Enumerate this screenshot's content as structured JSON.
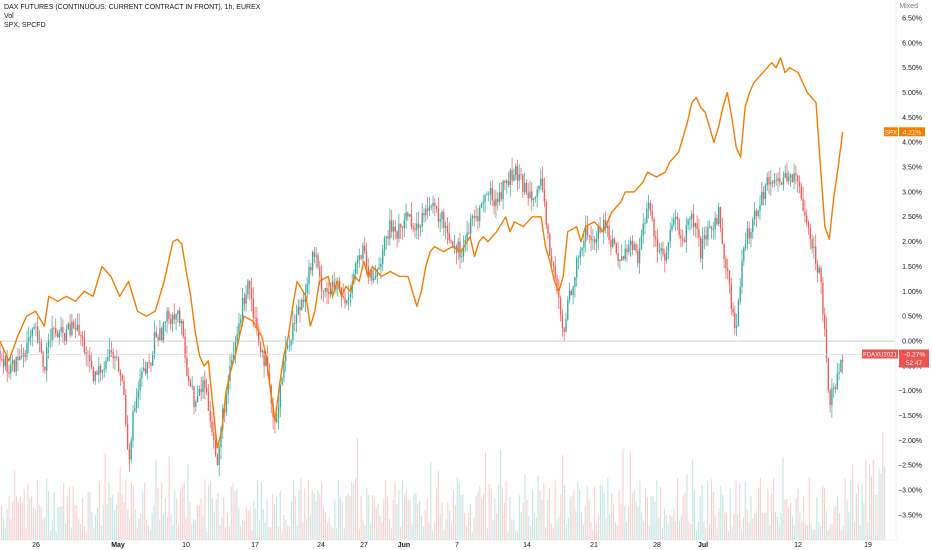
{
  "legend": {
    "main_title": "DAX FUTURES (CONTINUOUS: CURRENT CONTRACT IN FRONT), 1h, EUREX",
    "volume_label": "Vol",
    "compare_label": "SPX, SPCFD"
  },
  "scale_mode": "Mixed",
  "chart_data": {
    "type": "line",
    "yaxis": {
      "unit": "%",
      "ticks": [
        "6.50%",
        "6.00%",
        "5.50%",
        "5.00%",
        "4.50%",
        "4.00%",
        "3.50%",
        "3.00%",
        "2.50%",
        "2.00%",
        "1.50%",
        "1.00%",
        "0.50%",
        "0.00%",
        "−0.50%",
        "−1.00%",
        "−1.50%",
        "−2.00%",
        "−2.50%",
        "−3.00%",
        "−3.50%"
      ],
      "range": [
        -3.75,
        6.6
      ]
    },
    "xaxis": {
      "ticks": [
        "26",
        "May",
        "10",
        "17",
        "24",
        "27",
        "Jun",
        "7",
        "14",
        "21",
        "28",
        "Jul",
        "12",
        "19"
      ],
      "bold_ticks": [
        "May",
        "Jun",
        "Jul"
      ],
      "range": [
        0,
        1
      ]
    },
    "series": [
      {
        "name": "SPX",
        "kind": "line",
        "color": "#f57c00",
        "last_label": "SPX",
        "last_value": "4.21%",
        "points": [
          [
            0.0,
            0.0
          ],
          [
            0.01,
            -0.4
          ],
          [
            0.02,
            0.1
          ],
          [
            0.03,
            0.5
          ],
          [
            0.04,
            0.6
          ],
          [
            0.05,
            0.3
          ],
          [
            0.055,
            0.9
          ],
          [
            0.065,
            0.8
          ],
          [
            0.075,
            0.9
          ],
          [
            0.085,
            0.8
          ],
          [
            0.095,
            1.0
          ],
          [
            0.105,
            0.9
          ],
          [
            0.115,
            1.5
          ],
          [
            0.125,
            1.3
          ],
          [
            0.135,
            0.9
          ],
          [
            0.145,
            1.2
          ],
          [
            0.155,
            0.6
          ],
          [
            0.165,
            0.5
          ],
          [
            0.175,
            0.6
          ],
          [
            0.185,
            1.2
          ],
          [
            0.19,
            1.6
          ],
          [
            0.195,
            2.0
          ],
          [
            0.2,
            2.05
          ],
          [
            0.205,
            1.95
          ],
          [
            0.21,
            1.4
          ],
          [
            0.215,
            0.9
          ],
          [
            0.22,
            0.2
          ],
          [
            0.225,
            -0.3
          ],
          [
            0.23,
            -0.5
          ],
          [
            0.235,
            -0.4
          ],
          [
            0.24,
            -1.3
          ],
          [
            0.245,
            -2.15
          ],
          [
            0.25,
            -1.8
          ],
          [
            0.255,
            -1.0
          ],
          [
            0.26,
            -0.6
          ],
          [
            0.265,
            -0.3
          ],
          [
            0.27,
            0.1
          ],
          [
            0.275,
            0.5
          ],
          [
            0.285,
            0.4
          ],
          [
            0.295,
            0.1
          ],
          [
            0.3,
            -0.3
          ],
          [
            0.305,
            -1.0
          ],
          [
            0.31,
            -1.6
          ],
          [
            0.315,
            -0.9
          ],
          [
            0.32,
            -0.3
          ],
          [
            0.325,
            0.1
          ],
          [
            0.33,
            0.7
          ],
          [
            0.335,
            1.2
          ],
          [
            0.345,
            0.9
          ],
          [
            0.35,
            0.3
          ],
          [
            0.355,
            0.6
          ],
          [
            0.36,
            1.2
          ],
          [
            0.37,
            1.3
          ],
          [
            0.375,
            0.9
          ],
          [
            0.38,
            1.2
          ],
          [
            0.385,
            0.9
          ],
          [
            0.39,
            1.1
          ],
          [
            0.395,
            1.0
          ],
          [
            0.4,
            1.3
          ],
          [
            0.405,
            1.2
          ],
          [
            0.41,
            1.6
          ],
          [
            0.415,
            1.3
          ],
          [
            0.42,
            1.5
          ],
          [
            0.43,
            1.3
          ],
          [
            0.44,
            1.4
          ],
          [
            0.45,
            1.3
          ],
          [
            0.46,
            1.3
          ],
          [
            0.47,
            0.7
          ],
          [
            0.475,
            1.0
          ],
          [
            0.48,
            1.5
          ],
          [
            0.485,
            1.8
          ],
          [
            0.49,
            1.9
          ],
          [
            0.5,
            1.8
          ],
          [
            0.51,
            1.9
          ],
          [
            0.52,
            1.8
          ],
          [
            0.53,
            2.1
          ],
          [
            0.535,
            1.7
          ],
          [
            0.54,
            2.0
          ],
          [
            0.545,
            2.1
          ],
          [
            0.55,
            2.0
          ],
          [
            0.56,
            2.2
          ],
          [
            0.57,
            2.5
          ],
          [
            0.575,
            2.2
          ],
          [
            0.58,
            2.4
          ],
          [
            0.59,
            2.3
          ],
          [
            0.6,
            2.5
          ],
          [
            0.61,
            2.5
          ],
          [
            0.615,
            1.9
          ],
          [
            0.62,
            1.6
          ],
          [
            0.625,
            1.2
          ],
          [
            0.63,
            1.0
          ],
          [
            0.635,
            1.3
          ],
          [
            0.64,
            2.2
          ],
          [
            0.65,
            2.3
          ],
          [
            0.655,
            2.0
          ],
          [
            0.66,
            2.3
          ],
          [
            0.67,
            2.4
          ],
          [
            0.68,
            2.2
          ],
          [
            0.69,
            2.6
          ],
          [
            0.7,
            2.8
          ],
          [
            0.705,
            3.0
          ],
          [
            0.715,
            3.0
          ],
          [
            0.725,
            3.2
          ],
          [
            0.73,
            3.4
          ],
          [
            0.74,
            3.3
          ],
          [
            0.75,
            3.4
          ],
          [
            0.755,
            3.6
          ],
          [
            0.765,
            3.8
          ],
          [
            0.77,
            4.1
          ],
          [
            0.775,
            4.4
          ],
          [
            0.78,
            4.8
          ],
          [
            0.785,
            4.9
          ],
          [
            0.79,
            4.7
          ],
          [
            0.795,
            4.6
          ],
          [
            0.8,
            4.3
          ],
          [
            0.805,
            4.0
          ],
          [
            0.81,
            4.3
          ],
          [
            0.815,
            4.7
          ],
          [
            0.82,
            5.0
          ],
          [
            0.825,
            4.5
          ],
          [
            0.83,
            3.9
          ],
          [
            0.835,
            3.7
          ],
          [
            0.84,
            4.7
          ],
          [
            0.845,
            5.0
          ],
          [
            0.85,
            5.2
          ],
          [
            0.86,
            5.4
          ],
          [
            0.87,
            5.6
          ],
          [
            0.875,
            5.5
          ],
          [
            0.88,
            5.7
          ],
          [
            0.885,
            5.4
          ],
          [
            0.89,
            5.5
          ],
          [
            0.9,
            5.4
          ],
          [
            0.91,
            5.0
          ],
          [
            0.92,
            4.8
          ],
          [
            0.925,
            3.5
          ],
          [
            0.93,
            2.3
          ],
          [
            0.935,
            2.05
          ],
          [
            0.94,
            2.9
          ],
          [
            0.945,
            3.5
          ],
          [
            0.95,
            4.21
          ]
        ]
      },
      {
        "name": "FDAXU2021",
        "kind": "bars",
        "color_up": "#26a69a",
        "color_down": "#ef5350",
        "last_label": "FDAXU2021",
        "last_value": "−0.27%",
        "countdown": "52:47",
        "points": [
          [
            0.0,
            -0.2
          ],
          [
            0.01,
            -0.6
          ],
          [
            0.02,
            -0.4
          ],
          [
            0.03,
            -0.1
          ],
          [
            0.04,
            0.2
          ],
          [
            0.05,
            -0.6
          ],
          [
            0.055,
            0.2
          ],
          [
            0.07,
            0.1
          ],
          [
            0.085,
            0.3
          ],
          [
            0.095,
            -0.1
          ],
          [
            0.105,
            -0.8
          ],
          [
            0.115,
            -0.5
          ],
          [
            0.125,
            -0.2
          ],
          [
            0.135,
            -0.6
          ],
          [
            0.14,
            -1.1
          ],
          [
            0.145,
            -2.4
          ],
          [
            0.15,
            -1.5
          ],
          [
            0.16,
            -0.7
          ],
          [
            0.17,
            -0.5
          ],
          [
            0.175,
            0.2
          ],
          [
            0.18,
            0.1
          ],
          [
            0.19,
            0.5
          ],
          [
            0.2,
            0.6
          ],
          [
            0.205,
            0.2
          ],
          [
            0.21,
            -0.5
          ],
          [
            0.22,
            -1.3
          ],
          [
            0.23,
            -0.8
          ],
          [
            0.24,
            -1.8
          ],
          [
            0.245,
            -2.6
          ],
          [
            0.25,
            -1.6
          ],
          [
            0.26,
            -0.6
          ],
          [
            0.27,
            0.4
          ],
          [
            0.28,
            1.3
          ],
          [
            0.285,
            0.7
          ],
          [
            0.29,
            0.2
          ],
          [
            0.3,
            -0.5
          ],
          [
            0.305,
            -1.2
          ],
          [
            0.31,
            -1.8
          ],
          [
            0.315,
            -1.0
          ],
          [
            0.32,
            -0.4
          ],
          [
            0.33,
            0.3
          ],
          [
            0.34,
            0.8
          ],
          [
            0.35,
            1.5
          ],
          [
            0.355,
            1.8
          ],
          [
            0.36,
            1.2
          ],
          [
            0.37,
            1.0
          ],
          [
            0.38,
            1.1
          ],
          [
            0.39,
            0.7
          ],
          [
            0.4,
            1.5
          ],
          [
            0.41,
            1.8
          ],
          [
            0.415,
            1.3
          ],
          [
            0.42,
            1.2
          ],
          [
            0.43,
            1.7
          ],
          [
            0.44,
            2.3
          ],
          [
            0.45,
            2.2
          ],
          [
            0.46,
            2.6
          ],
          [
            0.47,
            2.2
          ],
          [
            0.48,
            2.8
          ],
          [
            0.49,
            2.6
          ],
          [
            0.5,
            2.4
          ],
          [
            0.51,
            2.0
          ],
          [
            0.52,
            1.8
          ],
          [
            0.53,
            2.3
          ],
          [
            0.54,
            2.6
          ],
          [
            0.55,
            3.0
          ],
          [
            0.56,
            2.8
          ],
          [
            0.57,
            3.2
          ],
          [
            0.58,
            3.4
          ],
          [
            0.59,
            3.1
          ],
          [
            0.6,
            3.0
          ],
          [
            0.61,
            3.1
          ],
          [
            0.615,
            2.5
          ],
          [
            0.62,
            1.8
          ],
          [
            0.63,
            0.8
          ],
          [
            0.635,
            0.0
          ],
          [
            0.64,
            0.8
          ],
          [
            0.65,
            1.5
          ],
          [
            0.66,
            2.2
          ],
          [
            0.67,
            2.0
          ],
          [
            0.68,
            2.4
          ],
          [
            0.69,
            2.0
          ],
          [
            0.7,
            1.6
          ],
          [
            0.71,
            2.0
          ],
          [
            0.72,
            1.7
          ],
          [
            0.73,
            2.8
          ],
          [
            0.74,
            2.0
          ],
          [
            0.75,
            1.6
          ],
          [
            0.76,
            2.5
          ],
          [
            0.77,
            2.0
          ],
          [
            0.78,
            2.5
          ],
          [
            0.79,
            1.8
          ],
          [
            0.8,
            2.2
          ],
          [
            0.81,
            2.6
          ],
          [
            0.815,
            1.8
          ],
          [
            0.82,
            1.5
          ],
          [
            0.825,
            0.6
          ],
          [
            0.83,
            0.2
          ],
          [
            0.835,
            1.2
          ],
          [
            0.84,
            2.0
          ],
          [
            0.85,
            2.5
          ],
          [
            0.86,
            3.0
          ],
          [
            0.87,
            3.3
          ],
          [
            0.88,
            3.2
          ],
          [
            0.89,
            3.4
          ],
          [
            0.9,
            3.1
          ],
          [
            0.91,
            2.5
          ],
          [
            0.915,
            2.0
          ],
          [
            0.92,
            1.6
          ],
          [
            0.925,
            1.3
          ],
          [
            0.93,
            0.2
          ],
          [
            0.935,
            -1.2
          ],
          [
            0.94,
            -1.0
          ],
          [
            0.945,
            -0.5
          ],
          [
            0.95,
            -0.27
          ]
        ]
      }
    ],
    "volume": {
      "color_up": "#26a69a",
      "color_down": "#ef5350",
      "count": 470
    },
    "reference_line": 0.0,
    "grid": false
  }
}
